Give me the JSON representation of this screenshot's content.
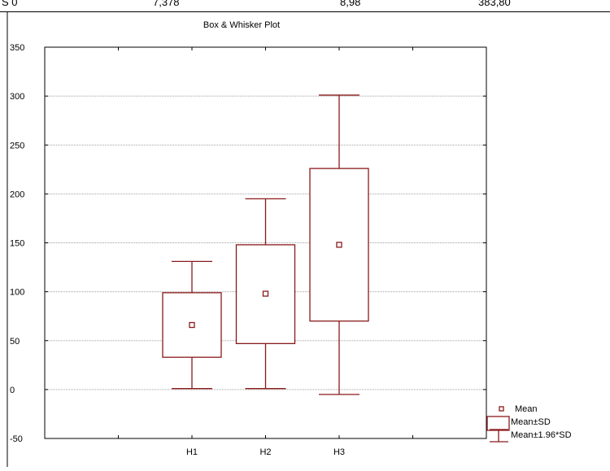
{
  "table_fragment": {
    "cells": [
      "S 0",
      "7,378",
      "8,98",
      "383,80"
    ]
  },
  "chart_data": {
    "type": "box",
    "title": "Box & Whisker Plot",
    "xlabel": "",
    "ylabel": "",
    "ylim": [
      -50,
      350
    ],
    "yticks": [
      -50,
      0,
      50,
      100,
      150,
      200,
      250,
      300,
      350
    ],
    "categories": [
      "H1",
      "H2",
      "H3"
    ],
    "series": [
      {
        "category": "H1",
        "mean": 66,
        "mean_minus_sd": 33,
        "mean_plus_sd": 99,
        "mean_minus_1_96sd": 1,
        "mean_plus_1_96sd": 131
      },
      {
        "category": "H2",
        "mean": 98,
        "mean_minus_sd": 47,
        "mean_plus_sd": 148,
        "mean_minus_1_96sd": 1,
        "mean_plus_1_96sd": 195
      },
      {
        "category": "H3",
        "mean": 148,
        "mean_minus_sd": 70,
        "mean_plus_sd": 226,
        "mean_minus_1_96sd": -5,
        "mean_plus_1_96sd": 301
      }
    ],
    "legend": {
      "placement": "bottom-right",
      "entries": [
        "Mean",
        "Mean±SD",
        "Mean±1.96*SD"
      ]
    },
    "grid": true,
    "colors": {
      "series": "#8b1a1a",
      "grid": "#a0a0a0",
      "axis": "#000000"
    }
  }
}
